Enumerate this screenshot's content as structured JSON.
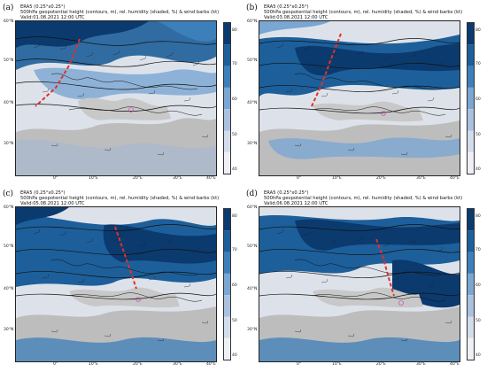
{
  "panels": [
    {
      "letter": "(a)",
      "header": {
        "line1": "ERA5 (0.25°x0.25°)",
        "line2": "500hPa geopotential height (contours, m), rel. humidity (shaded, %) & wind barbs (kt)",
        "line3": "Valid:01.08.2021 12:00 UTC"
      }
    },
    {
      "letter": "(b)",
      "header": {
        "line1": "ERA5 (0.25°x0.25°)",
        "line2": "500hPa geopotential height (contours, m), rel. humidity (shaded, %) & wind barbs (kt)",
        "line3": "Valid:03.08.2021 12:00 UTC"
      }
    },
    {
      "letter": "(c)",
      "header": {
        "line1": "ERA5 (0.25°x0.25°)",
        "line2": "500hPa geopotential height (contours, m), rel. humidity (shaded, %) & wind barbs (kt)",
        "line3": "Valid:05.08.2021 12:00 UTC"
      }
    },
    {
      "letter": "(d)",
      "header": {
        "line1": "ERA5 (0.25°x0.25°)",
        "line2": "500hPa geopotential height (contours, m), rel. humidity (shaded, %) & wind barbs (kt)",
        "line3": "Valid:06.08.2021 12:00 UTC"
      }
    }
  ],
  "map_axes": {
    "lat_labels": [
      "60°N",
      "50°N",
      "40°N",
      "30°N"
    ],
    "lon_labels": [
      "0°",
      "10°E",
      "20°E",
      "30°E",
      "40°E"
    ]
  },
  "colorbar": {
    "ticks": [
      "80",
      "70",
      "60",
      "50",
      "40"
    ],
    "colors": [
      "#0b3a6e",
      "#1d5f9a",
      "#3d7fb9",
      "#7aa6d2",
      "#a9c1df",
      "#d3dcea",
      "#eef0f5"
    ]
  },
  "colors": {
    "trough_line": "#e0302b",
    "land_mask": "#bdbdbd",
    "contour": "#111111"
  }
}
